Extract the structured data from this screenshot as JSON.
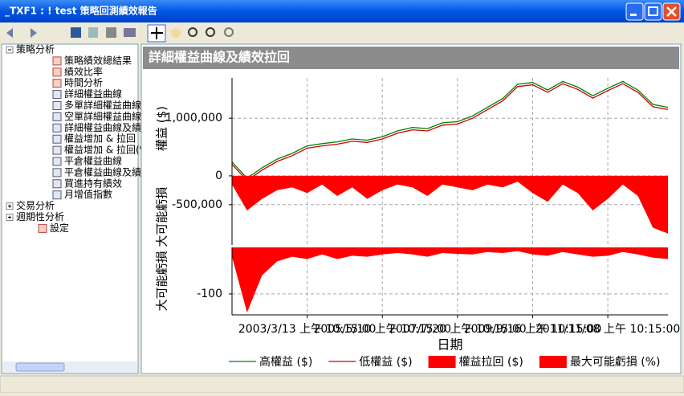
{
  "window": {
    "title": "_TXF1 : ! test 策略回測績效報告"
  },
  "tree": {
    "items": [
      {
        "label": "策略分析",
        "level": 0,
        "kind": "open"
      },
      {
        "label": "策略績效總結果",
        "level": 2,
        "kind": "table"
      },
      {
        "label": "績效比率",
        "level": 2,
        "kind": "table"
      },
      {
        "label": "時間分析",
        "level": 2,
        "kind": "table"
      },
      {
        "label": "詳細權益曲線",
        "level": 2,
        "kind": "chart"
      },
      {
        "label": "多單詳細權益曲線",
        "level": 2,
        "kind": "chart"
      },
      {
        "label": "空單詳細權益曲線",
        "level": 2,
        "kind": "chart"
      },
      {
        "label": "詳細權益曲線及績效",
        "level": 2,
        "kind": "chart"
      },
      {
        "label": "權益增加 & 拉回",
        "level": 2,
        "kind": "chart"
      },
      {
        "label": "權益增加 & 拉回(%)",
        "level": 2,
        "kind": "chart"
      },
      {
        "label": "平倉權益曲線",
        "level": 2,
        "kind": "chart"
      },
      {
        "label": "平倉權益曲線及績效",
        "level": 2,
        "kind": "chart"
      },
      {
        "label": "買進持有績效",
        "level": 2,
        "kind": "chart"
      },
      {
        "label": "月增值指數",
        "level": 2,
        "kind": "chart"
      },
      {
        "label": "交易分析",
        "level": 0,
        "kind": "closed"
      },
      {
        "label": "週期性分析",
        "level": 0,
        "kind": "closed"
      },
      {
        "label": "設定",
        "level": 1,
        "kind": "table"
      }
    ]
  },
  "panel_title": "詳細權益曲線及績效拉回",
  "chart_data": [
    {
      "type": "line",
      "y_label": "權益 ($)",
      "xlim": [
        0,
        29
      ],
      "ylim": [
        -1200000,
        1700000
      ],
      "yticks": [
        {
          "value": 1000000,
          "label": "1,000,000"
        },
        0,
        {
          "value": -500000,
          "label": "-500,000"
        }
      ],
      "series": [
        {
          "name": "高權益 ($)",
          "color": "#008000",
          "kind": "line",
          "values": [
            240000,
            -40000,
            140000,
            290000,
            390000,
            520000,
            560000,
            590000,
            640000,
            620000,
            680000,
            780000,
            840000,
            820000,
            920000,
            940000,
            1040000,
            1190000,
            1340000,
            1590000,
            1620000,
            1490000,
            1640000,
            1540000,
            1390000,
            1520000,
            1640000,
            1490000,
            1240000,
            1190000
          ]
        },
        {
          "name": "低權益 ($)",
          "color": "#cc0000",
          "kind": "line",
          "values": [
            200000,
            -80000,
            100000,
            250000,
            350000,
            480000,
            520000,
            550000,
            600000,
            580000,
            640000,
            740000,
            800000,
            780000,
            880000,
            900000,
            1000000,
            1150000,
            1300000,
            1550000,
            1580000,
            1450000,
            1600000,
            1500000,
            1350000,
            1480000,
            1600000,
            1450000,
            1200000,
            1150000
          ]
        },
        {
          "name": "權益拉回 ($)",
          "color": "#ff0000",
          "kind": "area",
          "values": [
            -150000,
            -600000,
            -400000,
            -250000,
            -200000,
            -300000,
            -150000,
            -350000,
            -200000,
            -400000,
            -250000,
            -150000,
            -200000,
            -350000,
            -150000,
            -200000,
            -250000,
            -150000,
            -200000,
            -100000,
            -300000,
            -450000,
            -150000,
            -300000,
            -600000,
            -400000,
            -150000,
            -350000,
            -900000,
            -1000000
          ]
        }
      ]
    },
    {
      "type": "area",
      "y_label": "大可能虧損 大可能虧損",
      "x_label": "日期",
      "xlim": [
        0,
        29
      ],
      "ylim": [
        -145,
        0
      ],
      "yticks": [
        -100
      ],
      "xticks": [
        {
          "value": 5,
          "label": "2003/3/13 上午 10:15:00"
        },
        {
          "value": 10,
          "label": "2005/5/10 上午 10:15:00"
        },
        {
          "value": 15,
          "label": "2007/7/20 上午 10:15:00"
        },
        {
          "value": 20,
          "label": "2009/9/16 上午 10:15:00"
        },
        {
          "value": 25,
          "label": "2011/11/08 上午 10:15:00"
        }
      ],
      "series": [
        {
          "name": "最大可能虧損 (%)",
          "color": "#ff0000",
          "kind": "area",
          "values": [
            -20,
            -140,
            -60,
            -30,
            -20,
            -25,
            -15,
            -25,
            -18,
            -20,
            -15,
            -12,
            -15,
            -20,
            -12,
            -14,
            -15,
            -10,
            -12,
            -8,
            -15,
            -18,
            -10,
            -15,
            -20,
            -18,
            -10,
            -15,
            -22,
            -25
          ]
        }
      ]
    }
  ]
}
